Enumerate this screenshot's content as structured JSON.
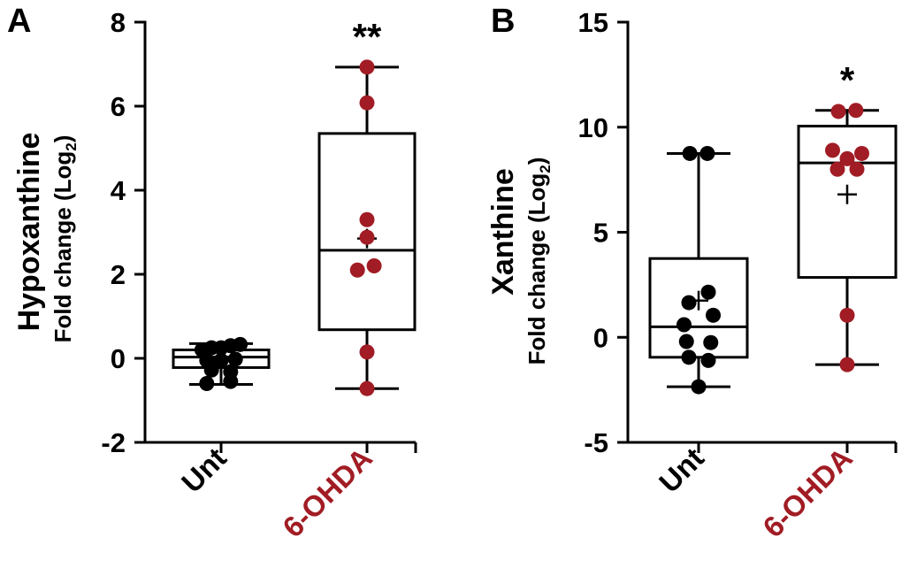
{
  "colors": {
    "unt": "#000000",
    "ohda": "#A11C24"
  },
  "chart_data": [
    {
      "type": "box",
      "panel": "A",
      "ylabel": "Hypoxanthine",
      "ylabel_sub": "Fold change (Log",
      "ylabel_sub_index": "2",
      "ylabel_sub_close": ")",
      "ylim": [
        -2,
        8
      ],
      "yticks": [
        -2,
        0,
        2,
        4,
        6,
        8
      ],
      "ytick_labels": [
        "-2",
        "0",
        "2",
        "4",
        "6",
        "8"
      ],
      "categories": [
        "Unt",
        "6-OHDA"
      ],
      "groups": [
        {
          "name": "Unt",
          "min": -0.62,
          "q1": -0.22,
          "median": 0.03,
          "q3": 0.2,
          "max": 0.35,
          "mean": 0.0,
          "points": [
            {
              "dx": -0.4,
              "y": 0.2
            },
            {
              "dx": -0.2,
              "y": 0.25
            },
            {
              "dx": 0.0,
              "y": 0.25
            },
            {
              "dx": 0.2,
              "y": 0.3
            },
            {
              "dx": 0.4,
              "y": 0.33
            },
            {
              "dx": -0.3,
              "y": -0.05
            },
            {
              "dx": 0.0,
              "y": -0.05
            },
            {
              "dx": 0.3,
              "y": -0.02
            },
            {
              "dx": -0.2,
              "y": -0.28
            },
            {
              "dx": 0.2,
              "y": -0.32
            },
            {
              "dx": -0.3,
              "y": -0.6
            },
            {
              "dx": 0.2,
              "y": -0.55
            }
          ]
        },
        {
          "name": "6-OHDA",
          "min": -0.72,
          "q1": 0.68,
          "median": 2.57,
          "q3": 5.35,
          "max": 6.93,
          "mean": 2.85,
          "points": [
            {
              "dx": 0.0,
              "y": 6.93
            },
            {
              "dx": 0.0,
              "y": 6.08
            },
            {
              "dx": 0.0,
              "y": 3.3
            },
            {
              "dx": 0.0,
              "y": 2.88
            },
            {
              "dx": -0.2,
              "y": 2.1
            },
            {
              "dx": 0.15,
              "y": 2.2
            },
            {
              "dx": 0.0,
              "y": 0.15
            },
            {
              "dx": 0.0,
              "y": -0.72
            }
          ]
        }
      ],
      "significance": [
        {
          "category": "6-OHDA",
          "text": "**"
        }
      ]
    },
    {
      "type": "box",
      "panel": "B",
      "ylabel": "Xanthine",
      "ylabel_sub": "Fold change (Log",
      "ylabel_sub_index": "2",
      "ylabel_sub_close": ")",
      "ylim": [
        -5,
        15
      ],
      "yticks": [
        -5,
        0,
        5,
        10,
        15
      ],
      "ytick_labels": [
        "-5",
        "0",
        "5",
        "10",
        "15"
      ],
      "categories": [
        "Unt",
        "6-OHDA"
      ],
      "groups": [
        {
          "name": "Unt",
          "min": -2.35,
          "q1": -0.95,
          "median": 0.5,
          "q3": 3.75,
          "max": 8.75,
          "mean": 1.75,
          "points": [
            {
              "dx": -0.18,
              "y": 8.75
            },
            {
              "dx": 0.18,
              "y": 8.75
            },
            {
              "dx": 0.2,
              "y": 2.15
            },
            {
              "dx": -0.2,
              "y": 1.65
            },
            {
              "dx": 0.3,
              "y": 1.05
            },
            {
              "dx": -0.3,
              "y": 0.6
            },
            {
              "dx": -0.25,
              "y": -0.2
            },
            {
              "dx": 0.25,
              "y": -0.25
            },
            {
              "dx": -0.2,
              "y": -0.95
            },
            {
              "dx": 0.2,
              "y": -1.1
            },
            {
              "dx": 0.0,
              "y": -2.35
            }
          ]
        },
        {
          "name": "6-OHDA",
          "min": -1.3,
          "q1": 2.85,
          "median": 8.3,
          "q3": 10.05,
          "max": 10.8,
          "mean": 6.8,
          "points": [
            {
              "dx": -0.18,
              "y": 10.75
            },
            {
              "dx": 0.18,
              "y": 10.8
            },
            {
              "dx": -0.3,
              "y": 8.9
            },
            {
              "dx": 0.3,
              "y": 8.75
            },
            {
              "dx": 0.0,
              "y": 8.5
            },
            {
              "dx": -0.2,
              "y": 8.0
            },
            {
              "dx": 0.2,
              "y": 8.0
            },
            {
              "dx": 0.0,
              "y": 1.05
            },
            {
              "dx": 0.0,
              "y": -1.3
            }
          ]
        }
      ],
      "significance": [
        {
          "category": "6-OHDA",
          "text": "*"
        }
      ]
    }
  ]
}
